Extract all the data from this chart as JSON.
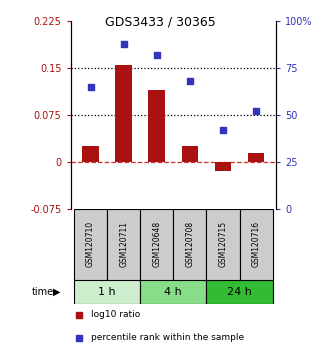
{
  "title": "GDS3433 / 30365",
  "samples": [
    "GSM120710",
    "GSM120711",
    "GSM120648",
    "GSM120708",
    "GSM120715",
    "GSM120716"
  ],
  "log10_ratio": [
    0.026,
    0.155,
    0.115,
    0.026,
    -0.015,
    0.015
  ],
  "percentile_rank": [
    65,
    88,
    82,
    68,
    42,
    52
  ],
  "ylim_left": [
    -0.075,
    0.225
  ],
  "ylim_right": [
    0,
    100
  ],
  "yticks_left": [
    -0.075,
    0,
    0.075,
    0.15,
    0.225
  ],
  "yticks_right": [
    0,
    25,
    50,
    75,
    100
  ],
  "ytick_labels_left": [
    "-0.075",
    "0",
    "0.075",
    "0.15",
    "0.225"
  ],
  "ytick_labels_right": [
    "0",
    "25",
    "50",
    "75",
    "100%"
  ],
  "hlines_dotted": [
    0.075,
    0.15
  ],
  "hline_dashed": 0,
  "bar_color": "#aa1111",
  "square_color": "#3333bb",
  "time_groups": [
    {
      "label": "1 h",
      "cols": [
        0,
        1
      ],
      "color": "#cceecc"
    },
    {
      "label": "4 h",
      "cols": [
        2,
        3
      ],
      "color": "#88dd88"
    },
    {
      "label": "24 h",
      "cols": [
        4,
        5
      ],
      "color": "#33bb33"
    }
  ],
  "bar_width": 0.5,
  "legend_items": [
    {
      "label": "log10 ratio",
      "color": "#aa1111"
    },
    {
      "label": "percentile rank within the sample",
      "color": "#3333bb"
    }
  ],
  "bg_color_sample": "#cccccc",
  "title_fontsize": 9
}
